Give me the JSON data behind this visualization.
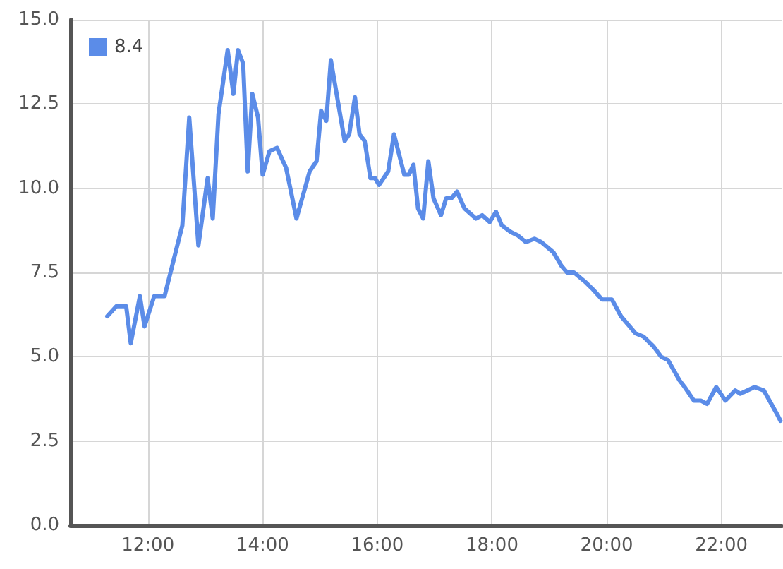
{
  "chart_data": {
    "type": "line",
    "x": [
      11.29,
      11.45,
      11.62,
      11.7,
      11.86,
      11.94,
      12.11,
      12.29,
      12.6,
      12.72,
      12.88,
      13.04,
      13.13,
      13.23,
      13.39,
      13.49,
      13.57,
      13.66,
      13.74,
      13.82,
      13.92,
      14.0,
      14.12,
      14.25,
      14.41,
      14.59,
      14.82,
      14.94,
      15.02,
      15.11,
      15.19,
      15.31,
      15.43,
      15.51,
      15.61,
      15.69,
      15.78,
      15.88,
      15.96,
      16.03,
      16.19,
      16.29,
      16.47,
      16.55,
      16.63,
      16.71,
      16.8,
      16.89,
      16.98,
      17.11,
      17.2,
      17.29,
      17.39,
      17.52,
      17.72,
      17.83,
      17.96,
      18.07,
      18.17,
      18.33,
      18.45,
      18.59,
      18.74,
      18.86,
      19.07,
      19.21,
      19.31,
      19.43,
      19.64,
      19.76,
      19.92,
      20.09,
      20.25,
      20.5,
      20.64,
      20.82,
      20.95,
      21.07,
      21.27,
      21.36,
      21.52,
      21.64,
      21.75,
      21.91,
      22.07,
      22.24,
      22.33,
      22.58,
      22.74,
      22.97,
      23.03
    ],
    "series": [
      {
        "name": "8.4",
        "color": "#5b8ce8",
        "values": [
          6.2,
          6.5,
          6.5,
          5.4,
          6.8,
          5.9,
          6.8,
          6.8,
          8.9,
          12.1,
          8.3,
          10.3,
          9.1,
          12.2,
          14.1,
          12.8,
          14.1,
          13.7,
          10.5,
          12.8,
          12.1,
          10.4,
          11.1,
          11.2,
          10.6,
          9.1,
          10.5,
          10.8,
          12.3,
          12.0,
          13.8,
          12.6,
          11.4,
          11.6,
          12.7,
          11.6,
          11.4,
          10.3,
          10.3,
          10.1,
          10.5,
          11.6,
          10.4,
          10.4,
          10.7,
          9.4,
          9.1,
          10.8,
          9.7,
          9.2,
          9.7,
          9.7,
          9.9,
          9.4,
          9.1,
          9.2,
          9.0,
          9.3,
          8.9,
          8.7,
          8.6,
          8.4,
          8.5,
          8.4,
          8.1,
          7.7,
          7.5,
          7.5,
          7.2,
          7.0,
          6.7,
          6.7,
          6.2,
          5.7,
          5.6,
          5.3,
          5.0,
          4.9,
          4.3,
          4.1,
          3.7,
          3.7,
          3.6,
          4.1,
          3.7,
          4.0,
          3.9,
          4.1,
          4.0,
          3.3,
          3.1
        ]
      }
    ],
    "xlim": [
      10.65,
      23.05
    ],
    "xticks": [
      {
        "value": 12,
        "label": "12:00"
      },
      {
        "value": 14,
        "label": "14:00"
      },
      {
        "value": 16,
        "label": "16:00"
      },
      {
        "value": 18,
        "label": "18:00"
      },
      {
        "value": 20,
        "label": "20:00"
      },
      {
        "value": 22,
        "label": "22:00"
      }
    ],
    "ylim": [
      0,
      15
    ],
    "yticks": [
      {
        "value": 0,
        "label": "0.0"
      },
      {
        "value": 2.5,
        "label": "2.5"
      },
      {
        "value": 5,
        "label": "5.0"
      },
      {
        "value": 7.5,
        "label": "7.5"
      },
      {
        "value": 10,
        "label": "10.0"
      },
      {
        "value": 12.5,
        "label": "12.5"
      },
      {
        "value": 15,
        "label": "15.0"
      }
    ],
    "grid": true,
    "legend": "top left",
    "marker": "none",
    "line_style": "solid"
  }
}
